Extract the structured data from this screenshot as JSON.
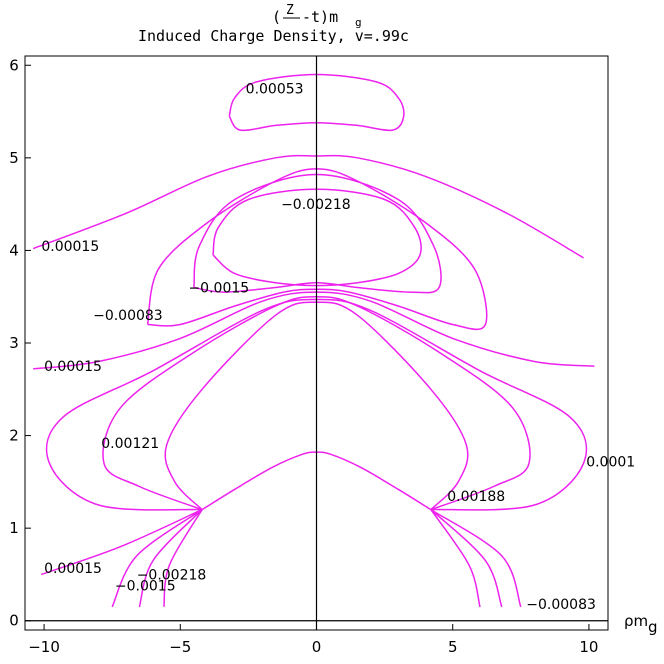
{
  "chart_data": {
    "type": "contour",
    "title_line1": "(",
    "title_frac_num": "Z",
    "title_after": "-t)m",
    "title_sub": "g",
    "title_line2": "Induced Charge Density, v=.99c",
    "xlabel": "ρm",
    "xlabel_sub": "g",
    "xlim": [
      -10.7,
      10.7
    ],
    "ylim": [
      -0.1,
      6.1
    ],
    "x_ticks": [
      -10,
      -5,
      0,
      5,
      10
    ],
    "x_tick_labels": [
      "-10",
      "-5",
      "0",
      "5",
      "10"
    ],
    "y_ticks": [
      0,
      1,
      2,
      3,
      4,
      5,
      6
    ],
    "y_tick_labels": [
      "0",
      "1",
      "2",
      "3",
      "4",
      "5",
      "6"
    ],
    "series_color": "#ee22ee",
    "contour_labels": [
      {
        "text": "0.00053",
        "x": -2.6,
        "y": 5.75
      },
      {
        "text": "-0.00218",
        "x": -1.3,
        "y": 4.5
      },
      {
        "text": "0.00015",
        "x": -10.1,
        "y": 4.05
      },
      {
        "text": "-0.0015",
        "x": -4.7,
        "y": 3.6
      },
      {
        "text": "-0.00083",
        "x": -8.2,
        "y": 3.3
      },
      {
        "text": "0.00015",
        "x": -10.0,
        "y": 2.75
      },
      {
        "text": "0.00121",
        "x": -7.9,
        "y": 1.92
      },
      {
        "text": "0.0001",
        "x": 9.9,
        "y": 1.72
      },
      {
        "text": "0.00188",
        "x": 4.8,
        "y": 1.35
      },
      {
        "text": "0.00015",
        "x": -10.0,
        "y": 0.57
      },
      {
        "text": "-0.00218",
        "x": -6.6,
        "y": 0.5
      },
      {
        "text": "-0.0015",
        "x": -7.4,
        "y": 0.38
      },
      {
        "text": "-0.00083",
        "x": 7.7,
        "y": 0.18
      }
    ],
    "contours": [
      {
        "level": "0.00053",
        "points": [
          [
            -3.2,
            5.45
          ],
          [
            -3.0,
            5.65
          ],
          [
            -2.2,
            5.82
          ],
          [
            0,
            5.9
          ],
          [
            2.2,
            5.82
          ],
          [
            3.0,
            5.65
          ],
          [
            3.2,
            5.45
          ],
          [
            2.8,
            5.3
          ],
          [
            1.5,
            5.35
          ],
          [
            0,
            5.38
          ],
          [
            -1.5,
            5.35
          ],
          [
            -2.8,
            5.3
          ],
          [
            -3.2,
            5.45
          ]
        ]
      },
      {
        "level": "0.00015",
        "points": [
          [
            -10.4,
            4.02
          ],
          [
            -7,
            4.4
          ],
          [
            -4,
            4.8
          ],
          [
            -1.5,
            5.0
          ],
          [
            0,
            5.02
          ],
          [
            1.5,
            5.0
          ],
          [
            4,
            4.8
          ],
          [
            7,
            4.4
          ],
          [
            9.8,
            3.92
          ]
        ]
      },
      {
        "level": "-0.00218",
        "points": [
          [
            -3.8,
            3.95
          ],
          [
            -3.6,
            4.25
          ],
          [
            -2.5,
            4.55
          ],
          [
            0,
            4.66
          ],
          [
            2.5,
            4.55
          ],
          [
            3.6,
            4.25
          ],
          [
            3.8,
            3.95
          ],
          [
            3.0,
            3.75
          ],
          [
            1.5,
            3.65
          ],
          [
            0,
            3.62
          ],
          [
            -1.5,
            3.65
          ],
          [
            -3.0,
            3.75
          ],
          [
            -3.8,
            3.95
          ]
        ]
      },
      {
        "level": "-0.0015",
        "points": [
          [
            -4.5,
            3.6
          ],
          [
            -4.3,
            4.05
          ],
          [
            -3.0,
            4.55
          ],
          [
            0,
            4.82
          ],
          [
            3.0,
            4.55
          ],
          [
            4.3,
            4.05
          ],
          [
            4.5,
            3.6
          ],
          [
            3.4,
            3.55
          ],
          [
            1.5,
            3.6
          ],
          [
            0,
            3.65
          ],
          [
            -1.5,
            3.6
          ],
          [
            -3.4,
            3.55
          ],
          [
            -4.5,
            3.6
          ]
        ]
      },
      {
        "level": "-0.00083",
        "points": [
          [
            -6.2,
            3.2
          ],
          [
            -5.8,
            3.8
          ],
          [
            -4.0,
            4.3
          ],
          [
            -1.5,
            4.75
          ],
          [
            0,
            4.88
          ],
          [
            1.5,
            4.75
          ],
          [
            4.0,
            4.3
          ],
          [
            5.8,
            3.8
          ],
          [
            6.2,
            3.2
          ],
          [
            5.0,
            3.2
          ],
          [
            3.0,
            3.4
          ],
          [
            1.2,
            3.55
          ],
          [
            0,
            3.58
          ],
          [
            -1.2,
            3.55
          ],
          [
            -3.0,
            3.4
          ],
          [
            -5.0,
            3.2
          ],
          [
            -6.2,
            3.2
          ]
        ]
      },
      {
        "level": "0.00015b",
        "points": [
          [
            -10.4,
            2.72
          ],
          [
            -8,
            2.8
          ],
          [
            -5,
            3.05
          ],
          [
            -2,
            3.45
          ],
          [
            0,
            3.55
          ],
          [
            2,
            3.45
          ],
          [
            5,
            3.05
          ],
          [
            8,
            2.8
          ],
          [
            10.2,
            2.75
          ]
        ]
      },
      {
        "level": "0.00121",
        "points": [
          [
            -4.2,
            1.2
          ],
          [
            -6.5,
            1.45
          ],
          [
            -7.8,
            1.7
          ],
          [
            -7.2,
            2.3
          ],
          [
            -4.5,
            2.9
          ],
          [
            -1.5,
            3.4
          ],
          [
            0,
            3.5
          ],
          [
            1.5,
            3.4
          ],
          [
            4.5,
            2.9
          ],
          [
            7.2,
            2.3
          ],
          [
            7.8,
            1.7
          ],
          [
            6.5,
            1.45
          ],
          [
            4.2,
            1.2
          ]
        ]
      },
      {
        "level": "0.0001",
        "points": [
          [
            -4.2,
            1.2
          ],
          [
            -8,
            1.25
          ],
          [
            -9.8,
            1.7
          ],
          [
            -9.3,
            2.2
          ],
          [
            -6,
            2.7
          ],
          [
            -2,
            3.35
          ],
          [
            0,
            3.47
          ],
          [
            2,
            3.35
          ],
          [
            6,
            2.7
          ],
          [
            9.3,
            2.2
          ],
          [
            9.8,
            1.7
          ],
          [
            8,
            1.25
          ],
          [
            4.2,
            1.2
          ]
        ]
      },
      {
        "level": "0.00188",
        "points": [
          [
            -4.2,
            1.2
          ],
          [
            -5.2,
            1.5
          ],
          [
            -5.5,
            1.9
          ],
          [
            -4.2,
            2.5
          ],
          [
            -1.5,
            3.3
          ],
          [
            0,
            3.44
          ],
          [
            1.5,
            3.3
          ],
          [
            4.2,
            2.5
          ],
          [
            5.5,
            1.9
          ],
          [
            5.2,
            1.5
          ],
          [
            4.2,
            1.2
          ]
        ]
      },
      {
        "level": "0.00188b",
        "points": [
          [
            -4.2,
            1.2
          ],
          [
            -3.0,
            1.42
          ],
          [
            -1.6,
            1.66
          ],
          [
            -0.5,
            1.8
          ],
          [
            0,
            1.82
          ],
          [
            0.5,
            1.8
          ],
          [
            1.6,
            1.66
          ],
          [
            3.0,
            1.42
          ],
          [
            4.2,
            1.2
          ]
        ]
      },
      {
        "level": "fan-left-1",
        "points": [
          [
            -4.2,
            1.2
          ],
          [
            -7.2,
            0.8
          ],
          [
            -10.1,
            0.5
          ]
        ]
      },
      {
        "level": "fan-left-2",
        "points": [
          [
            -4.2,
            1.2
          ],
          [
            -6.6,
            0.7
          ],
          [
            -7.5,
            0.15
          ]
        ]
      },
      {
        "level": "fan-left-3",
        "points": [
          [
            -4.2,
            1.2
          ],
          [
            -6.0,
            0.65
          ],
          [
            -6.5,
            0.15
          ]
        ]
      },
      {
        "level": "fan-left-4",
        "points": [
          [
            -4.2,
            1.2
          ],
          [
            -5.4,
            0.6
          ],
          [
            -5.6,
            0.15
          ]
        ]
      },
      {
        "level": "fan-right-1",
        "points": [
          [
            4.2,
            1.2
          ],
          [
            5.6,
            0.6
          ],
          [
            6.0,
            0.15
          ]
        ]
      },
      {
        "level": "fan-right-2",
        "points": [
          [
            4.2,
            1.2
          ],
          [
            6.2,
            0.65
          ],
          [
            6.8,
            0.15
          ]
        ]
      },
      {
        "level": "fan-right-3",
        "points": [
          [
            4.2,
            1.2
          ],
          [
            6.8,
            0.7
          ],
          [
            7.5,
            0.15
          ]
        ]
      }
    ]
  }
}
